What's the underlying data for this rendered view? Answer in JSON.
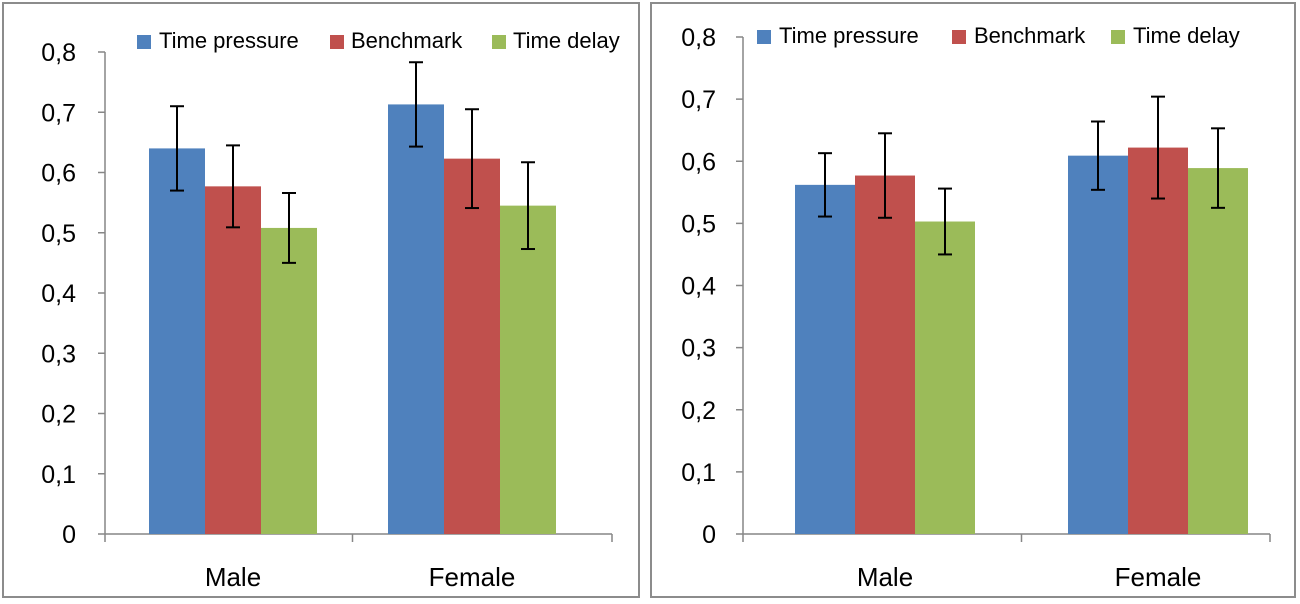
{
  "chart_data": [
    {
      "type": "bar",
      "title": "",
      "xlabel": "",
      "ylabel": "",
      "ylim": [
        0,
        0.8
      ],
      "ytick_step": 0.1,
      "yticks": [
        "0",
        "0,1",
        "0,2",
        "0,3",
        "0,4",
        "0,5",
        "0,6",
        "0,7",
        "0,8"
      ],
      "categories": [
        "Male",
        "Female"
      ],
      "legend_position": "top-right",
      "series": [
        {
          "name": "Time pressure",
          "color": "#4F81BD",
          "values": [
            0.64,
            0.713
          ],
          "errors": [
            0.07,
            0.07
          ]
        },
        {
          "name": "Benchmark",
          "color": "#C0504D",
          "values": [
            0.577,
            0.623
          ],
          "errors": [
            0.068,
            0.082
          ]
        },
        {
          "name": "Time delay",
          "color": "#9BBB59",
          "values": [
            0.508,
            0.545
          ],
          "errors": [
            0.058,
            0.072
          ]
        }
      ]
    },
    {
      "type": "bar",
      "title": "",
      "xlabel": "",
      "ylabel": "",
      "ylim": [
        0,
        0.8
      ],
      "ytick_step": 0.1,
      "yticks": [
        "0",
        "0,1",
        "0,2",
        "0,3",
        "0,4",
        "0,5",
        "0,6",
        "0,7",
        "0,8"
      ],
      "categories": [
        "Male",
        "Female"
      ],
      "legend_position": "top-right",
      "series": [
        {
          "name": "Time pressure",
          "color": "#4F81BD",
          "values": [
            0.562,
            0.609
          ],
          "errors": [
            0.051,
            0.055
          ]
        },
        {
          "name": "Benchmark",
          "color": "#C0504D",
          "values": [
            0.577,
            0.622
          ],
          "errors": [
            0.068,
            0.082
          ]
        },
        {
          "name": "Time delay",
          "color": "#9BBB59",
          "values": [
            0.503,
            0.589
          ],
          "errors": [
            0.053,
            0.064
          ]
        }
      ]
    }
  ]
}
